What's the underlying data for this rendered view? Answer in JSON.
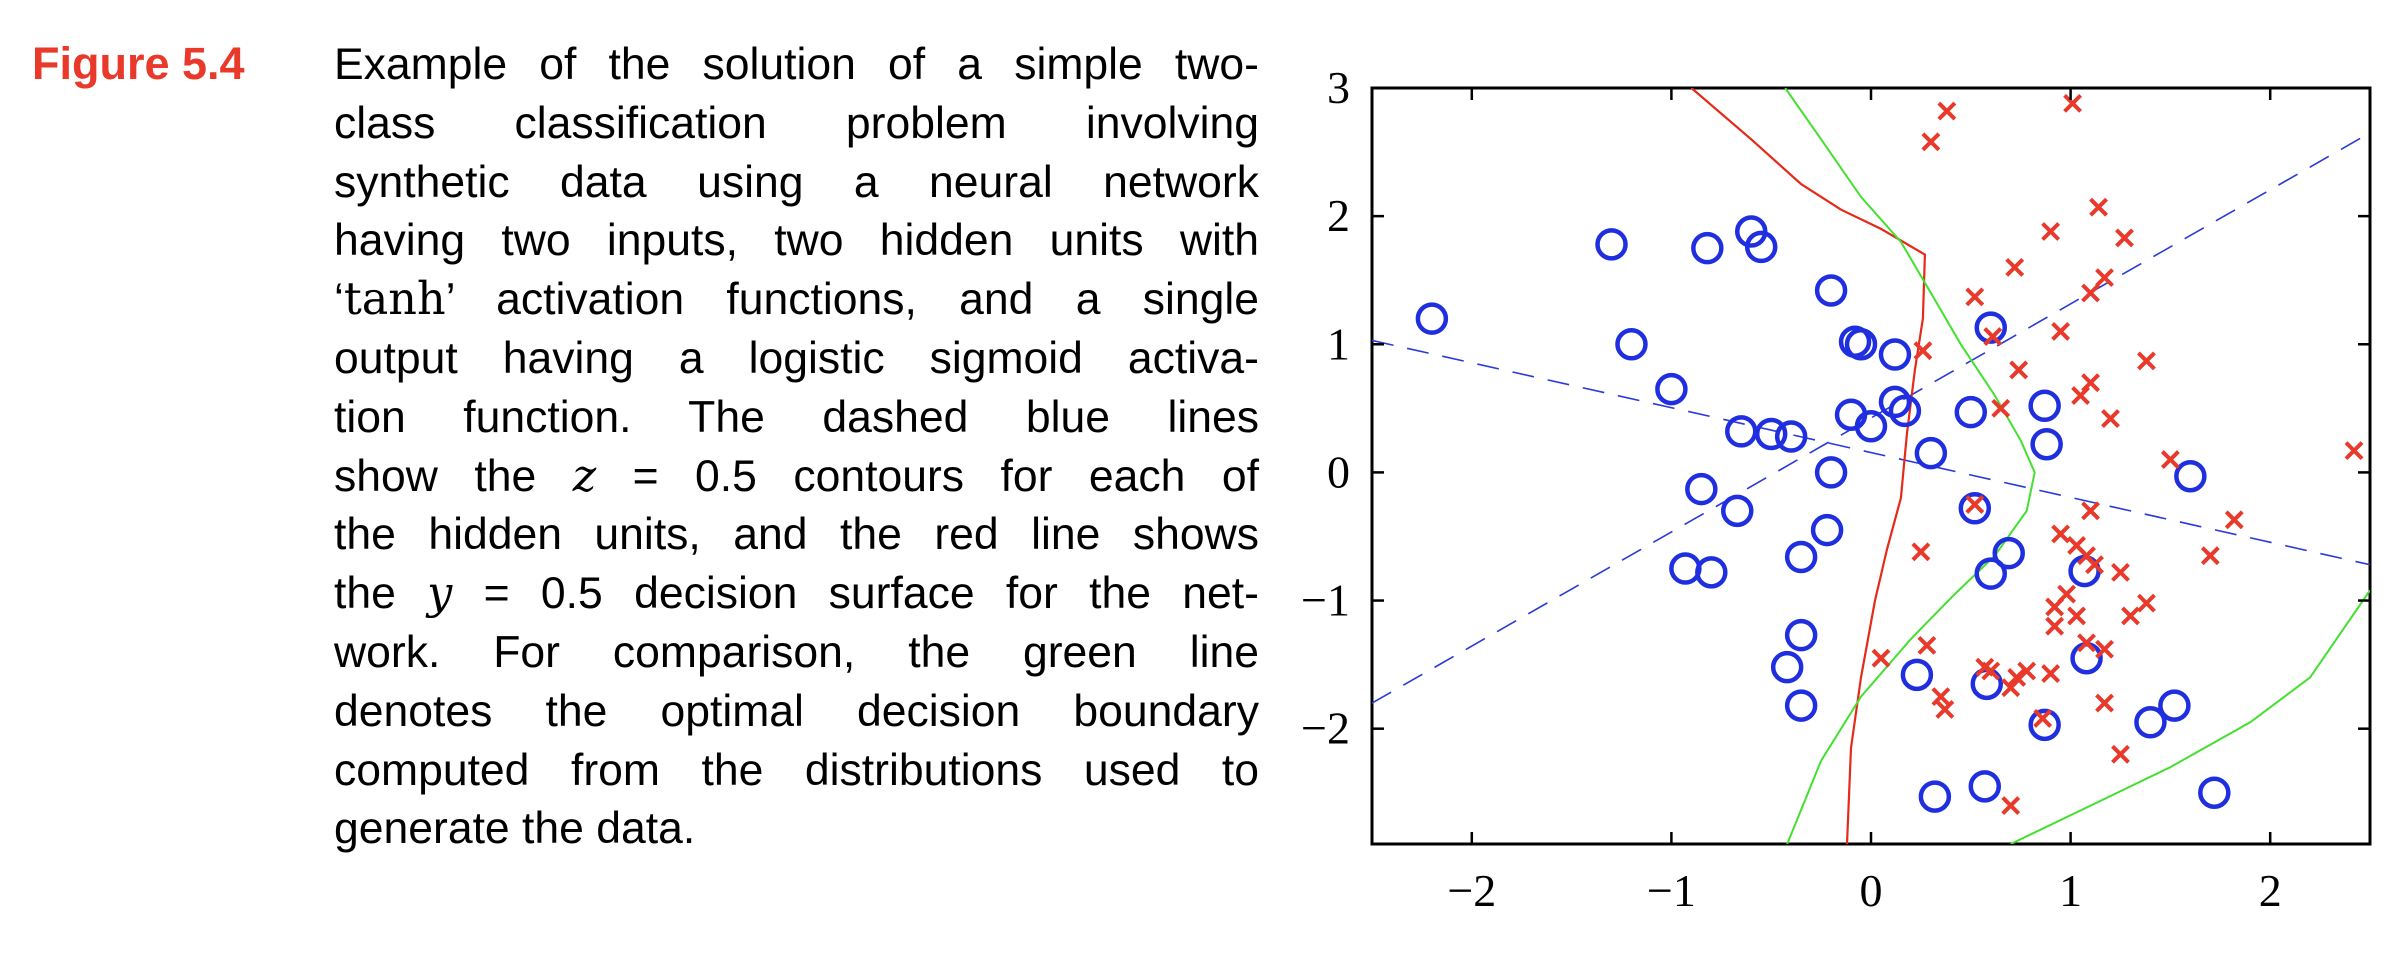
{
  "figure": {
    "label": "Figure 5.4",
    "caption_lines": [
      [
        "Example of the solution of a simple two-"
      ],
      [
        "class classification problem involving"
      ],
      [
        "synthetic data using a neural network"
      ],
      [
        "having two inputs, two hidden units with"
      ],
      [
        "‘",
        {
          "r": "tanh"
        },
        "’ activation functions, and a single"
      ],
      [
        "output having a logistic sigmoid activa-"
      ],
      [
        "tion function.  The dashed blue lines"
      ],
      [
        "show the ",
        {
          "m": "z"
        },
        " = 0.5 contours for each of"
      ],
      [
        "the hidden units, and the red line shows"
      ],
      [
        "the ",
        {
          "m": "y"
        },
        " = 0.5 decision surface for the net-"
      ],
      [
        "work.  For comparison, the green line"
      ],
      [
        "denotes the optimal decision boundary"
      ],
      [
        "computed from the distributions used to"
      ],
      [
        "generate the data."
      ]
    ]
  },
  "chart_data": {
    "type": "scatter",
    "xlim": [
      -2.5,
      2.5
    ],
    "ylim": [
      -2.9,
      3.0
    ],
    "xticks": [
      -2,
      -1,
      0,
      1,
      2
    ],
    "yticks": [
      -2,
      -1,
      0,
      1,
      2,
      3
    ],
    "xtick_labels": [
      "−2",
      "−1",
      "0",
      "1",
      "2"
    ],
    "ytick_labels": [
      "−2",
      "−1",
      "0",
      "1",
      "2",
      "3"
    ],
    "grid": false,
    "colors": {
      "circles": "#1f2fe0",
      "crosses": "#e8392a",
      "hidden_contours": "#2a3ad8",
      "decision": "#e52a1a",
      "optimal": "#44e030"
    },
    "series": [
      {
        "marker": "circle",
        "points": [
          [
            -2.2,
            1.2
          ],
          [
            -1.3,
            1.78
          ],
          [
            -0.82,
            1.75
          ],
          [
            -0.6,
            1.88
          ],
          [
            -0.55,
            1.76
          ],
          [
            -1.2,
            1.0
          ],
          [
            -1.0,
            0.65
          ],
          [
            -0.65,
            0.32
          ],
          [
            -0.5,
            0.3
          ],
          [
            -0.4,
            0.28
          ],
          [
            -0.85,
            -0.13
          ],
          [
            -0.67,
            -0.3
          ],
          [
            -0.93,
            -0.75
          ],
          [
            -0.8,
            -0.78
          ],
          [
            -0.2,
            1.42
          ],
          [
            -0.08,
            1.02
          ],
          [
            -0.05,
            1.0
          ],
          [
            0.12,
            0.92
          ],
          [
            -0.1,
            0.45
          ],
          [
            0.12,
            0.55
          ],
          [
            0.17,
            0.48
          ],
          [
            0.0,
            0.36
          ],
          [
            -0.2,
            0.0
          ],
          [
            -0.22,
            -0.45
          ],
          [
            -0.35,
            -0.66
          ],
          [
            0.3,
            0.15
          ],
          [
            -0.35,
            -1.27
          ],
          [
            -0.42,
            -1.52
          ],
          [
            -0.35,
            -1.82
          ],
          [
            0.23,
            -1.58
          ],
          [
            0.32,
            -2.53
          ],
          [
            0.5,
            0.47
          ],
          [
            0.6,
            1.13
          ],
          [
            0.87,
            0.52
          ],
          [
            0.88,
            0.22
          ],
          [
            0.52,
            -0.28
          ],
          [
            0.69,
            -0.63
          ],
          [
            0.6,
            -0.79
          ],
          [
            1.07,
            -0.77
          ],
          [
            1.08,
            -1.45
          ],
          [
            0.58,
            -1.65
          ],
          [
            0.87,
            -1.97
          ],
          [
            0.57,
            -2.45
          ],
          [
            1.4,
            -1.95
          ],
          [
            1.52,
            -1.82
          ],
          [
            1.6,
            -0.03
          ],
          [
            1.72,
            -2.5
          ]
        ]
      },
      {
        "marker": "cross",
        "points": [
          [
            0.38,
            2.82
          ],
          [
            1.01,
            2.88
          ],
          [
            0.3,
            2.58
          ],
          [
            1.14,
            2.07
          ],
          [
            0.9,
            1.88
          ],
          [
            1.27,
            1.83
          ],
          [
            0.72,
            1.6
          ],
          [
            1.17,
            1.52
          ],
          [
            1.1,
            1.4
          ],
          [
            0.52,
            1.37
          ],
          [
            0.61,
            1.06
          ],
          [
            0.95,
            1.1
          ],
          [
            1.38,
            0.87
          ],
          [
            0.26,
            0.95
          ],
          [
            0.74,
            0.8
          ],
          [
            1.1,
            0.7
          ],
          [
            1.05,
            0.6
          ],
          [
            0.65,
            0.5
          ],
          [
            1.2,
            0.42
          ],
          [
            1.5,
            0.1
          ],
          [
            2.42,
            0.17
          ],
          [
            0.52,
            -0.25
          ],
          [
            1.1,
            -0.3
          ],
          [
            1.82,
            -0.37
          ],
          [
            0.95,
            -0.48
          ],
          [
            1.03,
            -0.57
          ],
          [
            1.08,
            -0.65
          ],
          [
            1.12,
            -0.72
          ],
          [
            1.25,
            -0.78
          ],
          [
            1.7,
            -0.65
          ],
          [
            0.25,
            -0.62
          ],
          [
            0.98,
            -0.95
          ],
          [
            0.92,
            -1.05
          ],
          [
            1.03,
            -1.12
          ],
          [
            0.92,
            -1.2
          ],
          [
            1.38,
            -1.02
          ],
          [
            1.3,
            -1.12
          ],
          [
            0.28,
            -1.35
          ],
          [
            1.08,
            -1.33
          ],
          [
            1.17,
            -1.38
          ],
          [
            0.05,
            -1.45
          ],
          [
            0.57,
            -1.52
          ],
          [
            0.6,
            -1.55
          ],
          [
            0.73,
            -1.6
          ],
          [
            0.78,
            -1.55
          ],
          [
            0.9,
            -1.57
          ],
          [
            0.35,
            -1.75
          ],
          [
            0.37,
            -1.85
          ],
          [
            0.7,
            -1.68
          ],
          [
            1.17,
            -1.8
          ],
          [
            0.86,
            -1.92
          ],
          [
            1.25,
            -2.2
          ],
          [
            0.7,
            -2.6
          ]
        ]
      }
    ],
    "curves": [
      {
        "style": "dashed",
        "role": "hidden",
        "points": [
          [
            -2.5,
            1.03
          ],
          [
            2.5,
            -0.72
          ]
        ]
      },
      {
        "style": "dashed",
        "role": "hidden",
        "points": [
          [
            -2.5,
            -1.8
          ],
          [
            2.5,
            2.65
          ]
        ]
      },
      {
        "style": "solid",
        "role": "decision",
        "points": [
          [
            -0.9,
            3.0
          ],
          [
            -0.6,
            2.6
          ],
          [
            -0.35,
            2.25
          ],
          [
            -0.15,
            2.05
          ],
          [
            0.05,
            1.9
          ],
          [
            0.27,
            1.7
          ],
          [
            0.26,
            1.2
          ],
          [
            0.22,
            0.8
          ],
          [
            0.18,
            0.3
          ],
          [
            0.15,
            -0.2
          ],
          [
            0.08,
            -0.6
          ],
          [
            0.02,
            -1.0
          ],
          [
            -0.05,
            -1.6
          ],
          [
            -0.1,
            -2.15
          ],
          [
            -0.12,
            -2.9
          ]
        ]
      },
      {
        "style": "solid",
        "role": "optimal-upper",
        "points": [
          [
            -0.43,
            3.0
          ],
          [
            -0.25,
            2.6
          ],
          [
            -0.05,
            2.15
          ],
          [
            0.15,
            1.8
          ],
          [
            0.3,
            1.4
          ],
          [
            0.45,
            1.0
          ],
          [
            0.62,
            0.6
          ],
          [
            0.75,
            0.25
          ],
          [
            0.82,
            0.0
          ],
          [
            0.78,
            -0.3
          ],
          [
            0.62,
            -0.65
          ],
          [
            0.42,
            -0.95
          ],
          [
            0.2,
            -1.3
          ],
          [
            -0.05,
            -1.75
          ],
          [
            -0.25,
            -2.25
          ],
          [
            -0.42,
            -2.9
          ]
        ]
      },
      {
        "style": "solid",
        "role": "optimal-lower",
        "points": [
          [
            0.7,
            -2.9
          ],
          [
            1.1,
            -2.6
          ],
          [
            1.5,
            -2.3
          ],
          [
            1.9,
            -1.95
          ],
          [
            2.2,
            -1.6
          ],
          [
            2.5,
            -0.92
          ]
        ]
      }
    ]
  }
}
